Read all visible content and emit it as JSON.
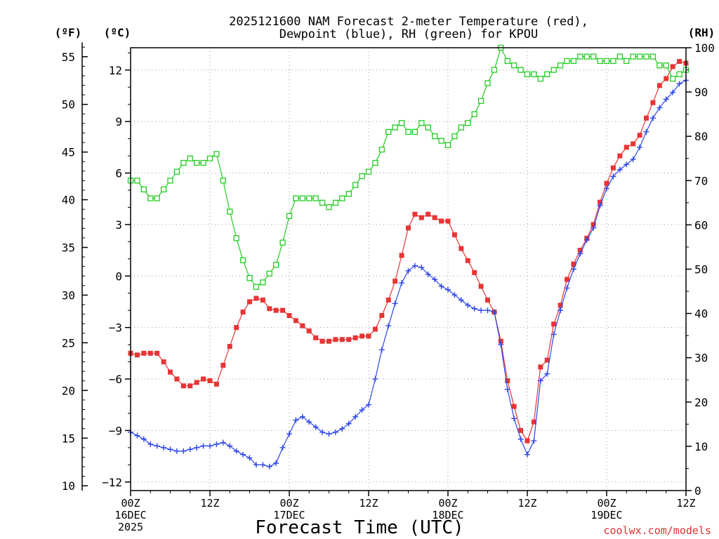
{
  "chart_data": {
    "type": "line",
    "title_line1": "2025121600 NAM Forecast 2-meter Temperature (red),",
    "title_line2": "Dewpoint (blue), RH (green) for KPOU",
    "xlabel": "Forecast Time (UTC)",
    "credit": "coolwx.com/models",
    "units": {
      "fahrenheit": "(ºF)",
      "celsius": "(ºC)",
      "rh": "(RH)"
    },
    "x_range_hours": [
      0,
      84
    ],
    "celsius_range": [
      -12.5,
      13.3
    ],
    "rh_range": [
      0,
      100
    ],
    "fahrenheit_ticks": [
      "55",
      "50",
      "45",
      "40",
      "35",
      "30",
      "25",
      "20",
      "15",
      "10"
    ],
    "fahrenheit_values": [
      55,
      50,
      45,
      40,
      35,
      30,
      25,
      20,
      15,
      10
    ],
    "celsius_ticks": [
      "12",
      "9",
      "6",
      "3",
      "0",
      "−3",
      "−6",
      "−9",
      "−12"
    ],
    "celsius_values": [
      12,
      9,
      6,
      3,
      0,
      -3,
      -6,
      -9,
      -12
    ],
    "rh_ticks": [
      "100",
      "90",
      "80",
      "70",
      "60",
      "50",
      "40",
      "30",
      "20",
      "10",
      "0"
    ],
    "rh_values": [
      100,
      90,
      80,
      70,
      60,
      50,
      40,
      30,
      20,
      10,
      0
    ],
    "x_ticks": [
      {
        "hour": 0,
        "line1": "00Z",
        "line2": "16DEC",
        "line3": "2025"
      },
      {
        "hour": 12,
        "line1": "12Z",
        "line2": "",
        "line3": ""
      },
      {
        "hour": 24,
        "line1": "00Z",
        "line2": "17DEC",
        "line3": ""
      },
      {
        "hour": 36,
        "line1": "12Z",
        "line2": "",
        "line3": ""
      },
      {
        "hour": 48,
        "line1": "00Z",
        "line2": "18DEC",
        "line3": ""
      },
      {
        "hour": 60,
        "line1": "12Z",
        "line2": "",
        "line3": ""
      },
      {
        "hour": 72,
        "line1": "00Z",
        "line2": "19DEC",
        "line3": ""
      },
      {
        "hour": 84,
        "line1": "12Z",
        "line2": "",
        "line3": ""
      }
    ],
    "series": [
      {
        "name": "2-meter Temperature",
        "unit": "C",
        "color": "#e83434",
        "marker": "filled-square",
        "hours": [
          0,
          1,
          2,
          3,
          4,
          5,
          6,
          7,
          8,
          9,
          10,
          11,
          12,
          13,
          14,
          15,
          16,
          17,
          18,
          19,
          20,
          21,
          22,
          23,
          24,
          25,
          26,
          27,
          28,
          29,
          30,
          31,
          32,
          33,
          34,
          35,
          36,
          37,
          38,
          39,
          40,
          41,
          42,
          43,
          44,
          45,
          46,
          47,
          48,
          49,
          50,
          51,
          52,
          53,
          54,
          55,
          56,
          57,
          58,
          59,
          60,
          61,
          62,
          63,
          64,
          65,
          66,
          67,
          68,
          69,
          70,
          71,
          72,
          73,
          74,
          75,
          76,
          77,
          78,
          79,
          80,
          81,
          82,
          83,
          84
        ],
        "values": [
          -4.5,
          -4.6,
          -4.5,
          -4.5,
          -4.5,
          -5.0,
          -5.6,
          -6.0,
          -6.4,
          -6.4,
          -6.2,
          -6.0,
          -6.1,
          -6.3,
          -5.2,
          -4.1,
          -3.0,
          -2.1,
          -1.5,
          -1.3,
          -1.4,
          -1.9,
          -2.0,
          -2.0,
          -2.3,
          -2.6,
          -2.9,
          -3.2,
          -3.6,
          -3.8,
          -3.8,
          -3.7,
          -3.7,
          -3.7,
          -3.6,
          -3.5,
          -3.5,
          -3.1,
          -2.3,
          -1.4,
          -0.3,
          1.2,
          2.8,
          3.6,
          3.4,
          3.6,
          3.4,
          3.2,
          3.2,
          2.4,
          1.6,
          0.9,
          0.2,
          -0.6,
          -1.4,
          -2.1,
          -3.8,
          -6.1,
          -7.6,
          -9.0,
          -9.6,
          -8.5,
          -5.3,
          -4.9,
          -2.8,
          -1.7,
          -0.2,
          0.7,
          1.5,
          2.2,
          3.0,
          4.3,
          5.4,
          6.3,
          7.0,
          7.5,
          7.7,
          8.2,
          9.2,
          10.1,
          11.1,
          11.5,
          12.2,
          12.5,
          12.4
        ]
      },
      {
        "name": "Dewpoint",
        "unit": "C",
        "color": "#2d45e8",
        "marker": "plus",
        "hours": [
          0,
          1,
          2,
          3,
          4,
          5,
          6,
          7,
          8,
          9,
          10,
          11,
          12,
          13,
          14,
          15,
          16,
          17,
          18,
          19,
          20,
          21,
          22,
          23,
          24,
          25,
          26,
          27,
          28,
          29,
          30,
          31,
          32,
          33,
          34,
          35,
          36,
          37,
          38,
          39,
          40,
          41,
          42,
          43,
          44,
          45,
          46,
          47,
          48,
          49,
          50,
          51,
          52,
          53,
          54,
          55,
          56,
          57,
          58,
          59,
          60,
          61,
          62,
          63,
          64,
          65,
          66,
          67,
          68,
          69,
          70,
          71,
          72,
          73,
          74,
          75,
          76,
          77,
          78,
          79,
          80,
          81,
          82,
          83,
          84
        ],
        "values": [
          -9.1,
          -9.3,
          -9.5,
          -9.8,
          -9.9,
          -10.0,
          -10.1,
          -10.2,
          -10.2,
          -10.1,
          -10.0,
          -9.9,
          -9.9,
          -9.8,
          -9.7,
          -9.9,
          -10.2,
          -10.4,
          -10.6,
          -11.0,
          -11.0,
          -11.1,
          -10.9,
          -10.0,
          -9.2,
          -8.4,
          -8.2,
          -8.5,
          -8.8,
          -9.1,
          -9.2,
          -9.1,
          -8.9,
          -8.6,
          -8.2,
          -7.8,
          -7.5,
          -6.0,
          -4.3,
          -2.9,
          -1.6,
          -0.4,
          0.3,
          0.6,
          0.5,
          0.1,
          -0.2,
          -0.6,
          -0.8,
          -1.1,
          -1.4,
          -1.7,
          -1.9,
          -2.0,
          -2.0,
          -2.1,
          -4.0,
          -6.6,
          -8.3,
          -9.5,
          -10.4,
          -9.6,
          -6.1,
          -5.7,
          -3.4,
          -2.0,
          -0.7,
          0.4,
          1.3,
          2.1,
          2.8,
          4.1,
          5.1,
          5.8,
          6.2,
          6.5,
          6.8,
          7.5,
          8.4,
          9.2,
          9.8,
          10.3,
          10.7,
          11.2,
          11.4
        ]
      },
      {
        "name": "RH",
        "unit": "%",
        "color": "#22cc22",
        "marker": "open-square",
        "hours": [
          0,
          1,
          2,
          3,
          4,
          5,
          6,
          7,
          8,
          9,
          10,
          11,
          12,
          13,
          14,
          15,
          16,
          17,
          18,
          19,
          20,
          21,
          22,
          23,
          24,
          25,
          26,
          27,
          28,
          29,
          30,
          31,
          32,
          33,
          34,
          35,
          36,
          37,
          38,
          39,
          40,
          41,
          42,
          43,
          44,
          45,
          46,
          47,
          48,
          49,
          50,
          51,
          52,
          53,
          54,
          55,
          56,
          57,
          58,
          59,
          60,
          61,
          62,
          63,
          64,
          65,
          66,
          67,
          68,
          69,
          70,
          71,
          72,
          73,
          74,
          75,
          76,
          77,
          78,
          79,
          80,
          81,
          82,
          83,
          84
        ],
        "values": [
          70,
          70,
          68,
          66,
          66,
          68,
          70,
          72,
          74,
          75,
          74,
          74,
          75,
          76,
          70,
          63,
          57,
          52,
          48,
          46,
          47,
          49,
          51,
          56,
          62,
          66,
          66,
          66,
          66,
          65,
          64,
          65,
          66,
          67,
          69,
          71,
          72,
          74,
          77,
          81,
          82,
          83,
          81,
          81,
          83,
          82,
          80,
          79,
          78,
          80,
          82,
          83,
          85,
          88,
          92,
          95,
          100,
          97,
          96,
          95,
          94,
          94,
          93,
          94,
          95,
          96,
          97,
          97,
          98,
          98,
          98,
          97,
          97,
          97,
          98,
          97,
          98,
          98,
          98,
          98,
          96,
          96,
          93,
          94,
          95
        ]
      }
    ]
  }
}
